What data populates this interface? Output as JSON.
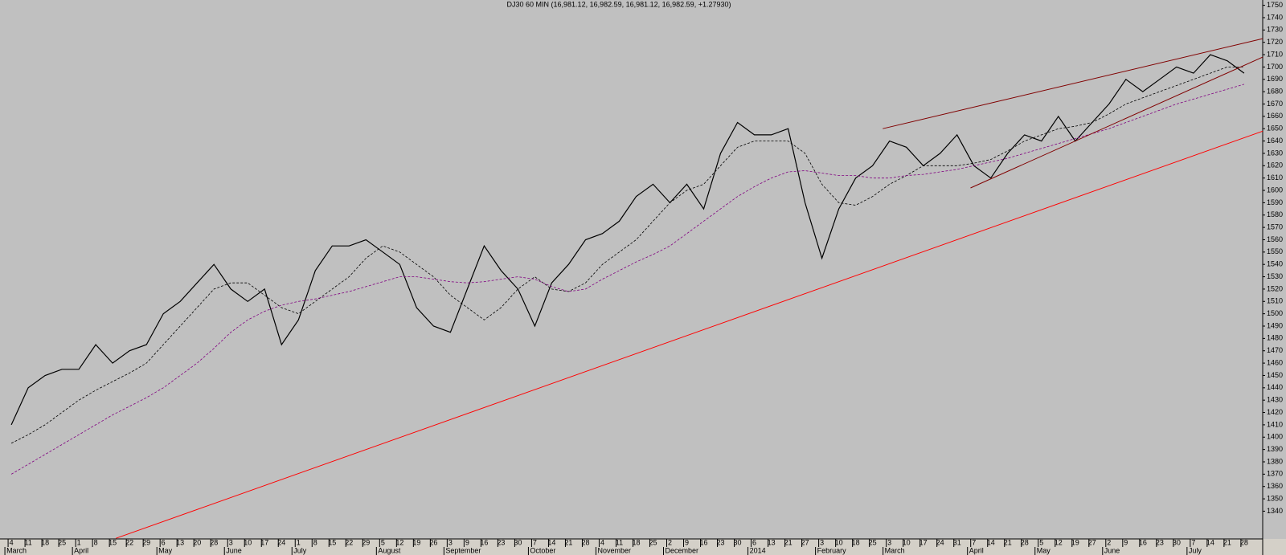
{
  "chart_data": {
    "type": "line",
    "title": "DJ30 60 MIN (16,981.12, 16,982.59, 16,981.12, 16,982.59, +1.27930)",
    "background": "#c0c0c0",
    "ylim": [
      1317.5,
      1754.3
    ],
    "xlim": [
      -0.67,
      74.1
    ],
    "yticks": [
      1340,
      1350,
      1360,
      1370,
      1380,
      1390,
      1400,
      1410,
      1420,
      1430,
      1440,
      1450,
      1460,
      1470,
      1480,
      1490,
      1500,
      1510,
      1520,
      1530,
      1540,
      1550,
      1560,
      1570,
      1580,
      1590,
      1600,
      1610,
      1620,
      1630,
      1640,
      1650,
      1660,
      1670,
      1680,
      1690,
      1700,
      1710,
      1720,
      1730,
      1740,
      1750
    ],
    "xticks": [
      {
        "value": 0,
        "label": "4"
      },
      {
        "value": 1,
        "label": "11"
      },
      {
        "value": 2,
        "label": "18"
      },
      {
        "value": 3,
        "label": "25"
      },
      {
        "value": 4,
        "label": "1"
      },
      {
        "value": 5,
        "label": "8"
      },
      {
        "value": 6,
        "label": "15"
      },
      {
        "value": 7,
        "label": "22"
      },
      {
        "value": 8,
        "label": "29"
      },
      {
        "value": 9,
        "label": "6"
      },
      {
        "value": 10,
        "label": "13"
      },
      {
        "value": 11,
        "label": "20"
      },
      {
        "value": 12,
        "label": "28"
      },
      {
        "value": 13,
        "label": "3"
      },
      {
        "value": 14,
        "label": "10"
      },
      {
        "value": 15,
        "label": "17"
      },
      {
        "value": 16,
        "label": "24"
      },
      {
        "value": 17,
        "label": "1"
      },
      {
        "value": 18,
        "label": "8"
      },
      {
        "value": 19,
        "label": "15"
      },
      {
        "value": 20,
        "label": "22"
      },
      {
        "value": 21,
        "label": "29"
      },
      {
        "value": 22,
        "label": "5"
      },
      {
        "value": 23,
        "label": "12"
      },
      {
        "value": 24,
        "label": "19"
      },
      {
        "value": 25,
        "label": "26"
      },
      {
        "value": 26,
        "label": "3"
      },
      {
        "value": 27,
        "label": "9"
      },
      {
        "value": 28,
        "label": "16"
      },
      {
        "value": 29,
        "label": "23"
      },
      {
        "value": 30,
        "label": "30"
      },
      {
        "value": 31,
        "label": "7"
      },
      {
        "value": 32,
        "label": "14"
      },
      {
        "value": 33,
        "label": "21"
      },
      {
        "value": 34,
        "label": "28"
      },
      {
        "value": 35,
        "label": "4"
      },
      {
        "value": 36,
        "label": "11"
      },
      {
        "value": 37,
        "label": "18"
      },
      {
        "value": 38,
        "label": "25"
      },
      {
        "value": 39,
        "label": "2"
      },
      {
        "value": 40,
        "label": "9"
      },
      {
        "value": 41,
        "label": "16"
      },
      {
        "value": 42,
        "label": "23"
      },
      {
        "value": 43,
        "label": "30"
      },
      {
        "value": 44,
        "label": "6"
      },
      {
        "value": 45,
        "label": "13"
      },
      {
        "value": 46,
        "label": "21"
      },
      {
        "value": 47,
        "label": "27"
      },
      {
        "value": 48,
        "label": "3"
      },
      {
        "value": 49,
        "label": "10"
      },
      {
        "value": 50,
        "label": "18"
      },
      {
        "value": 51,
        "label": "25"
      },
      {
        "value": 52,
        "label": "3"
      },
      {
        "value": 53,
        "label": "10"
      },
      {
        "value": 54,
        "label": "17"
      },
      {
        "value": 55,
        "label": "24"
      },
      {
        "value": 56,
        "label": "31"
      },
      {
        "value": 57,
        "label": "7"
      },
      {
        "value": 58,
        "label": "14"
      },
      {
        "value": 59,
        "label": "21"
      },
      {
        "value": 60,
        "label": "28"
      },
      {
        "value": 61,
        "label": "5"
      },
      {
        "value": 62,
        "label": "12"
      },
      {
        "value": 63,
        "label": "19"
      },
      {
        "value": 64,
        "label": "27"
      },
      {
        "value": 65,
        "label": "2"
      },
      {
        "value": 66,
        "label": "9"
      },
      {
        "value": 67,
        "label": "16"
      },
      {
        "value": 68,
        "label": "23"
      },
      {
        "value": 69,
        "label": "30"
      },
      {
        "value": 70,
        "label": "7"
      },
      {
        "value": 71,
        "label": "14"
      },
      {
        "value": 72,
        "label": "21"
      },
      {
        "value": 73,
        "label": "28"
      }
    ],
    "month_labels": [
      {
        "value": 0,
        "label": "March"
      },
      {
        "value": 4,
        "label": "April"
      },
      {
        "value": 9,
        "label": "May"
      },
      {
        "value": 13,
        "label": "June"
      },
      {
        "value": 17,
        "label": "July"
      },
      {
        "value": 22,
        "label": "August"
      },
      {
        "value": 26,
        "label": "September"
      },
      {
        "value": 31,
        "label": "October"
      },
      {
        "value": 35,
        "label": "November"
      },
      {
        "value": 39,
        "label": "December"
      },
      {
        "value": 44,
        "label": "2014"
      },
      {
        "value": 48,
        "label": "February"
      },
      {
        "value": 52,
        "label": "March"
      },
      {
        "value": 57,
        "label": "April"
      },
      {
        "value": 61,
        "label": "May"
      },
      {
        "value": 65,
        "label": "June"
      },
      {
        "value": 70,
        "label": "July"
      }
    ],
    "series": [
      {
        "color": "#000000",
        "dash": false,
        "width": 1.2,
        "x": [
          0,
          1,
          2,
          3,
          4,
          5,
          6,
          7,
          8,
          9,
          10,
          11,
          12,
          13,
          14,
          15,
          16,
          17,
          18,
          19,
          20,
          21,
          22,
          23,
          24,
          25,
          26,
          27,
          28,
          29,
          30,
          31,
          32,
          33,
          34,
          35,
          36,
          37,
          38,
          39,
          40,
          41,
          42,
          43,
          44,
          45,
          46,
          47,
          48,
          49,
          50,
          51,
          52,
          53,
          54,
          55,
          56,
          57,
          58,
          59,
          60,
          61,
          62,
          63,
          64,
          65,
          66,
          67,
          68,
          69,
          70,
          71,
          72,
          73
        ],
        "values": [
          1410,
          1440,
          1450,
          1455,
          1455,
          1475,
          1460,
          1470,
          1475,
          1500,
          1510,
          1525,
          1540,
          1520,
          1510,
          1520,
          1475,
          1495,
          1535,
          1555,
          1555,
          1560,
          1550,
          1540,
          1505,
          1490,
          1485,
          1520,
          1555,
          1535,
          1520,
          1490,
          1525,
          1540,
          1560,
          1565,
          1575,
          1595,
          1605,
          1590,
          1605,
          1585,
          1630,
          1655,
          1645,
          1645,
          1650,
          1590,
          1545,
          1585,
          1610,
          1620,
          1640,
          1635,
          1620,
          1630,
          1645,
          1620,
          1610,
          1630,
          1645,
          1640,
          1660,
          1640,
          1655,
          1670,
          1690,
          1680,
          1690,
          1700,
          1695,
          1710,
          1705,
          1695
        ]
      },
      {
        "color": "#000000",
        "dash": true,
        "width": 0.8,
        "x": [
          0,
          1,
          2,
          3,
          4,
          5,
          6,
          7,
          8,
          9,
          10,
          11,
          12,
          13,
          14,
          15,
          16,
          17,
          18,
          19,
          20,
          21,
          22,
          23,
          24,
          25,
          26,
          27,
          28,
          29,
          30,
          31,
          32,
          33,
          34,
          35,
          36,
          37,
          38,
          39,
          40,
          41,
          42,
          43,
          44,
          45,
          46,
          47,
          48,
          49,
          50,
          51,
          52,
          53,
          54,
          55,
          56,
          57,
          58,
          59,
          60,
          61,
          62,
          63,
          64,
          65,
          66,
          67,
          68,
          69,
          70,
          71,
          72,
          73
        ],
        "values": [
          1395,
          1402,
          1410,
          1420,
          1430,
          1438,
          1445,
          1452,
          1460,
          1475,
          1490,
          1505,
          1520,
          1525,
          1525,
          1515,
          1505,
          1500,
          1510,
          1520,
          1530,
          1545,
          1555,
          1550,
          1540,
          1530,
          1515,
          1505,
          1495,
          1505,
          1520,
          1530,
          1520,
          1518,
          1525,
          1540,
          1550,
          1560,
          1575,
          1590,
          1600,
          1605,
          1620,
          1635,
          1640,
          1640,
          1640,
          1630,
          1605,
          1590,
          1588,
          1595,
          1605,
          1612,
          1620,
          1620,
          1620,
          1622,
          1625,
          1632,
          1640,
          1645,
          1650,
          1652,
          1655,
          1662,
          1670,
          1675,
          1680,
          1685,
          1690,
          1695,
          1700,
          1700
        ]
      },
      {
        "color": "#800080",
        "dash": true,
        "width": 0.8,
        "x": [
          0,
          1,
          2,
          3,
          4,
          5,
          6,
          7,
          8,
          9,
          10,
          11,
          12,
          13,
          14,
          15,
          16,
          17,
          18,
          19,
          20,
          21,
          22,
          23,
          24,
          25,
          26,
          27,
          28,
          29,
          30,
          31,
          32,
          33,
          34,
          35,
          36,
          37,
          38,
          39,
          40,
          41,
          42,
          43,
          44,
          45,
          46,
          47,
          48,
          49,
          50,
          51,
          52,
          53,
          54,
          55,
          56,
          57,
          58,
          59,
          60,
          61,
          62,
          63,
          64,
          65,
          66,
          67,
          68,
          69,
          70,
          71,
          72,
          73
        ],
        "values": [
          1370,
          1378,
          1386,
          1394,
          1402,
          1410,
          1418,
          1425,
          1432,
          1440,
          1450,
          1460,
          1472,
          1485,
          1495,
          1502,
          1507,
          1510,
          1512,
          1515,
          1518,
          1522,
          1526,
          1530,
          1530,
          1528,
          1526,
          1525,
          1526,
          1528,
          1530,
          1528,
          1522,
          1518,
          1520,
          1528,
          1535,
          1542,
          1548,
          1555,
          1565,
          1575,
          1585,
          1595,
          1603,
          1610,
          1615,
          1616,
          1614,
          1612,
          1612,
          1610,
          1610,
          1612,
          1613,
          1615,
          1617,
          1620,
          1623,
          1626,
          1630,
          1634,
          1638,
          1642,
          1646,
          1650,
          1655,
          1660,
          1665,
          1670,
          1674,
          1678,
          1682,
          1686
        ]
      },
      {
        "color": "#ff0000",
        "dash": false,
        "width": 1,
        "x": [
          6.2,
          74.1
        ],
        "values": [
          1318,
          1648
        ]
      },
      {
        "color": "#800000",
        "dash": false,
        "width": 1,
        "x": [
          51.6,
          74.1
        ],
        "values": [
          1650,
          1723
        ]
      },
      {
        "color": "#800000",
        "dash": false,
        "width": 1,
        "x": [
          56.8,
          74.1
        ],
        "values": [
          1602,
          1708
        ]
      }
    ]
  }
}
